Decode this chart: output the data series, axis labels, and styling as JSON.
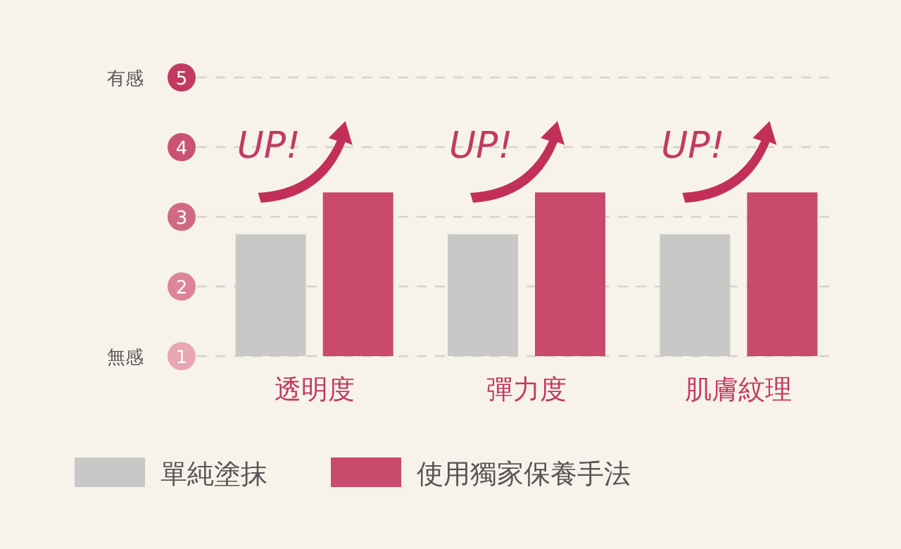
{
  "chart_data": {
    "type": "bar",
    "categories": [
      "透明度",
      "彈力度",
      "肌膚紋理"
    ],
    "series": [
      {
        "name": "單純塗抹",
        "color": "#c8c9c7",
        "values": [
          2.75,
          2.75,
          2.75
        ]
      },
      {
        "name": "使用獨家保養手法",
        "color": "#c94a6d",
        "values": [
          3.35,
          3.35,
          3.35
        ]
      }
    ],
    "ylim": [
      1,
      5
    ],
    "yticks": [
      1,
      2,
      3,
      4,
      5
    ],
    "grid": "y",
    "legend": "bottom left",
    "annotations": [
      "有感",
      "無感",
      "UP!",
      "UP!",
      "UP!"
    ]
  }
}
